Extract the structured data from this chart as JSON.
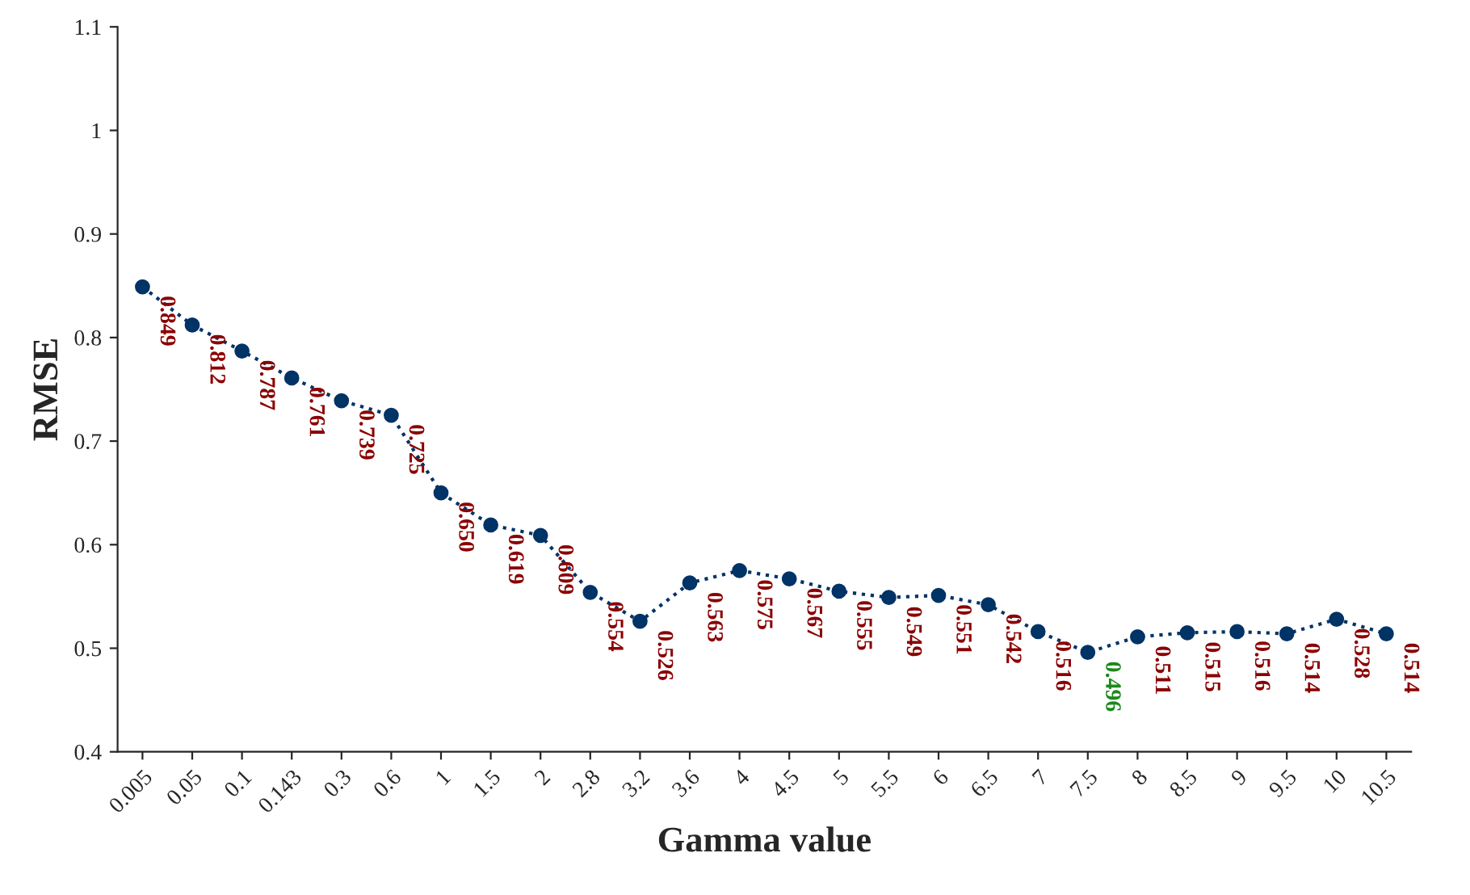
{
  "chart_data": {
    "type": "line",
    "xlabel": "Gamma value",
    "ylabel": "RMSE",
    "categories": [
      "0.005",
      "0.05",
      "0.1",
      "0.143",
      "0.3",
      "0.6",
      "1",
      "1.5",
      "2",
      "2.8",
      "3.2",
      "3.6",
      "4",
      "4.5",
      "5",
      "5.5",
      "6",
      "6.5",
      "7",
      "7.5",
      "8",
      "8.5",
      "9",
      "9.5",
      "10",
      "10.5"
    ],
    "series": [
      {
        "color": "#003366",
        "values": [
          0.849,
          0.812,
          0.787,
          0.761,
          0.739,
          0.725,
          0.65,
          0.619,
          0.609,
          0.554,
          0.526,
          0.563,
          0.575,
          0.567,
          0.555,
          0.549,
          0.551,
          0.542,
          0.516,
          0.496,
          0.511,
          0.515,
          0.516,
          0.514,
          0.528,
          0.514
        ],
        "value_labels": [
          "0.849",
          "0.812",
          "0.787",
          "0.761",
          "0.739",
          "0.725",
          "0.650",
          "0.619",
          "0.609",
          "0.554",
          "0.526",
          "0.563",
          "0.575",
          "0.567",
          "0.555",
          "0.549",
          "0.551",
          "0.542",
          "0.516",
          null,
          "0.511",
          "0.515",
          "0.516",
          "0.514",
          "0.528",
          "0.514"
        ]
      }
    ],
    "annotations": [
      {
        "text": "0.496",
        "x": "7.5",
        "y": 0.496
      }
    ],
    "ylim": [
      0.4,
      1.1
    ],
    "yticks": [
      0.4,
      0.5,
      0.6,
      0.7,
      0.8,
      0.9,
      {
        "value": 1.0,
        "label": "1"
      },
      1.1
    ],
    "grid": false,
    "marker": "circle",
    "line_style": "dotted"
  }
}
